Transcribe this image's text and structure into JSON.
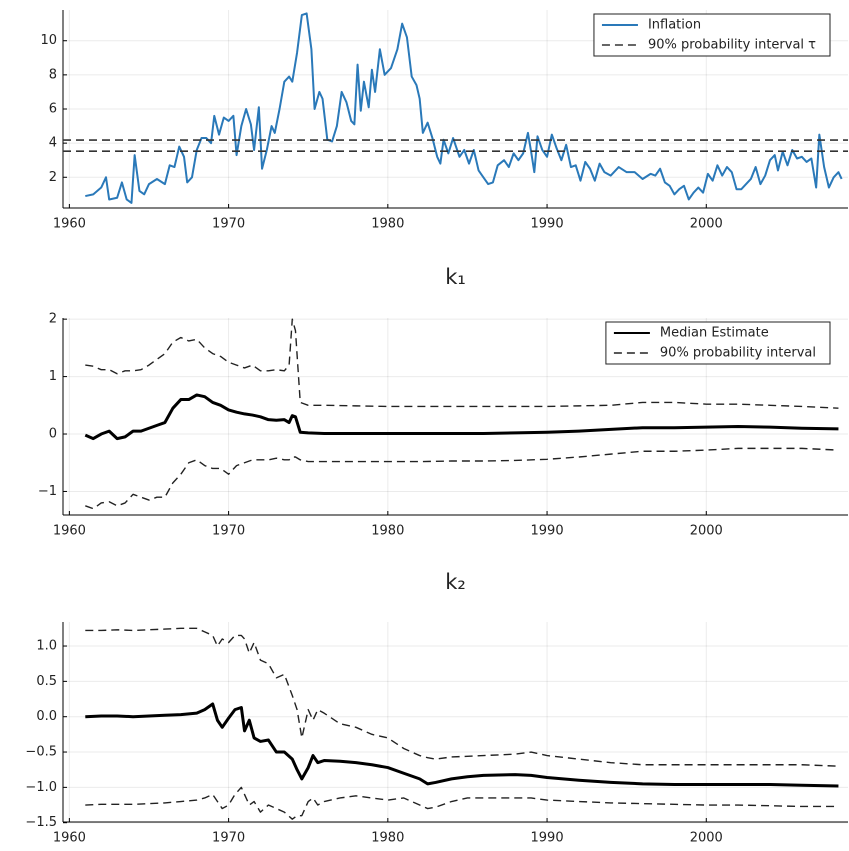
{
  "chart_data": [
    {
      "type": "line",
      "grid": true,
      "legend": "top-right",
      "xlim": [
        1959.6,
        2008.9
      ],
      "xticks": [
        1960,
        1970,
        1980,
        1990,
        2000
      ],
      "ylim": [
        0.2,
        11.8
      ],
      "yticks": [
        2,
        4,
        6,
        8,
        10
      ],
      "x": [
        1961.0,
        1961.5,
        1962.0,
        1962.3,
        1962.5,
        1963.0,
        1963.3,
        1963.6,
        1963.9,
        1964.1,
        1964.4,
        1964.7,
        1965.0,
        1965.5,
        1966.0,
        1966.3,
        1966.6,
        1966.9,
        1967.2,
        1967.4,
        1967.7,
        1968.0,
        1968.3,
        1968.6,
        1968.9,
        1969.1,
        1969.4,
        1969.7,
        1970.0,
        1970.3,
        1970.5,
        1970.8,
        1971.1,
        1971.4,
        1971.6,
        1971.9,
        1972.1,
        1972.4,
        1972.7,
        1972.9,
        1973.2,
        1973.5,
        1973.8,
        1974.0,
        1974.3,
        1974.6,
        1974.9,
        1975.2,
        1975.4,
        1975.7,
        1975.9,
        1976.2,
        1976.5,
        1976.8,
        1977.1,
        1977.4,
        1977.7,
        1977.9,
        1978.1,
        1978.3,
        1978.5,
        1978.8,
        1979.0,
        1979.2,
        1979.5,
        1979.8,
        1980.2,
        1980.6,
        1980.9,
        1981.2,
        1981.5,
        1981.8,
        1982.0,
        1982.2,
        1982.5,
        1982.8,
        1983.1,
        1983.3,
        1983.5,
        1983.8,
        1984.1,
        1984.5,
        1984.8,
        1985.1,
        1985.4,
        1985.7,
        1986.0,
        1986.3,
        1986.6,
        1986.9,
        1987.3,
        1987.6,
        1987.9,
        1988.2,
        1988.5,
        1988.8,
        1989.0,
        1989.2,
        1989.4,
        1989.7,
        1990.0,
        1990.3,
        1990.6,
        1990.9,
        1991.2,
        1991.5,
        1991.8,
        1992.1,
        1992.4,
        1992.7,
        1993.0,
        1993.3,
        1993.6,
        1994.0,
        1994.5,
        1995.0,
        1995.5,
        1996.0,
        1996.5,
        1996.8,
        1997.1,
        1997.4,
        1997.7,
        1998.0,
        1998.3,
        1998.6,
        1998.9,
        1999.2,
        1999.5,
        1999.8,
        2000.1,
        2000.4,
        2000.7,
        2001.0,
        2001.3,
        2001.6,
        2001.9,
        2002.2,
        2002.5,
        2002.8,
        2003.1,
        2003.4,
        2003.7,
        2004.0,
        2004.3,
        2004.5,
        2004.8,
        2005.1,
        2005.4,
        2005.7,
        2006.0,
        2006.3,
        2006.6,
        2006.9,
        2007.1,
        2007.4,
        2007.7,
        2008.0,
        2008.3,
        2008.5
      ],
      "series": [
        {
          "name": "Inflation",
          "color": "#2a79b9",
          "width": 2,
          "values": [
            0.9,
            1.0,
            1.4,
            2.0,
            0.7,
            0.8,
            1.7,
            0.7,
            0.5,
            3.3,
            1.2,
            1.0,
            1.6,
            1.9,
            1.6,
            2.7,
            2.6,
            3.8,
            3.2,
            1.7,
            2.0,
            3.6,
            4.3,
            4.3,
            4.0,
            5.6,
            4.5,
            5.5,
            5.3,
            5.6,
            3.3,
            5.0,
            6.0,
            5.1,
            3.6,
            6.1,
            2.5,
            3.6,
            5.0,
            4.6,
            6.0,
            7.6,
            7.9,
            7.6,
            9.3,
            11.5,
            11.6,
            9.5,
            6.0,
            7.0,
            6.6,
            4.2,
            4.1,
            5.0,
            7.0,
            6.4,
            5.3,
            5.1,
            8.6,
            5.9,
            7.6,
            6.1,
            8.3,
            7.0,
            9.5,
            8.0,
            8.4,
            9.5,
            11.0,
            10.2,
            7.9,
            7.4,
            6.6,
            4.6,
            5.2,
            4.3,
            3.2,
            2.8,
            4.2,
            3.4,
            4.3,
            3.2,
            3.6,
            2.8,
            3.6,
            2.4,
            2.0,
            1.6,
            1.7,
            2.7,
            3.0,
            2.6,
            3.4,
            3.0,
            3.4,
            4.6,
            3.5,
            2.3,
            4.4,
            3.6,
            3.2,
            4.5,
            3.7,
            3.0,
            3.9,
            2.6,
            2.7,
            1.8,
            2.9,
            2.5,
            1.8,
            2.8,
            2.3,
            2.1,
            2.6,
            2.3,
            2.3,
            1.9,
            2.2,
            2.1,
            2.5,
            1.7,
            1.5,
            1.0,
            1.3,
            1.5,
            0.7,
            1.1,
            1.4,
            1.1,
            2.2,
            1.8,
            2.7,
            2.1,
            2.6,
            2.3,
            1.3,
            1.3,
            1.6,
            1.9,
            2.6,
            1.6,
            2.1,
            3.0,
            3.3,
            2.4,
            3.5,
            2.7,
            3.6,
            3.1,
            3.2,
            2.9,
            3.1,
            1.4,
            4.5,
            2.6,
            1.4,
            2.0,
            2.3,
            1.9
          ]
        }
      ],
      "hlines": {
        "name": "90% probability interval τ",
        "color": "#333333",
        "values": [
          4.18,
          3.53
        ]
      }
    },
    {
      "type": "line",
      "title": "k₁",
      "grid": true,
      "legend": "top-right",
      "xlim": [
        1959.6,
        2008.9
      ],
      "xticks": [
        1960,
        1970,
        1980,
        1990,
        2000
      ],
      "ylim": [
        -1.41,
        2.02
      ],
      "yticks": [
        {
          "value": -1,
          "label": "−1"
        },
        0,
        1,
        2
      ],
      "x": [
        1961,
        1961.5,
        1962,
        1962.5,
        1963,
        1963.5,
        1964,
        1964.5,
        1965,
        1965.5,
        1966,
        1966.5,
        1967,
        1967.5,
        1968,
        1968.5,
        1969,
        1969.5,
        1970,
        1970.5,
        1971,
        1971.5,
        1972,
        1972.5,
        1973,
        1973.5,
        1973.8,
        1974.0,
        1974.2,
        1974.5,
        1975,
        1976,
        1978,
        1980,
        1982,
        1984,
        1986,
        1988,
        1990,
        1992,
        1994,
        1996,
        1998,
        2000,
        2002,
        2004,
        2006,
        2008.3
      ],
      "series": [
        {
          "name": "Median Estimate",
          "color": "#000000",
          "width": 3,
          "values": [
            -0.02,
            -0.08,
            0.0,
            0.05,
            -0.08,
            -0.05,
            0.05,
            0.05,
            0.1,
            0.15,
            0.2,
            0.45,
            0.6,
            0.6,
            0.68,
            0.65,
            0.55,
            0.5,
            0.42,
            0.38,
            0.35,
            0.33,
            0.3,
            0.25,
            0.24,
            0.25,
            0.2,
            0.32,
            0.3,
            0.03,
            0.02,
            0.01,
            0.01,
            0.01,
            0.01,
            0.01,
            0.01,
            0.02,
            0.03,
            0.05,
            0.08,
            0.11,
            0.11,
            0.12,
            0.13,
            0.12,
            0.1,
            0.09
          ]
        },
        {
          "name": "90% probability interval",
          "color": "#222222",
          "width": 1.4,
          "dashed": true,
          "upper": [
            1.2,
            1.18,
            1.12,
            1.12,
            1.05,
            1.1,
            1.1,
            1.12,
            1.2,
            1.3,
            1.4,
            1.6,
            1.68,
            1.62,
            1.65,
            1.5,
            1.4,
            1.35,
            1.25,
            1.2,
            1.15,
            1.2,
            1.1,
            1.1,
            1.12,
            1.1,
            1.2,
            2.0,
            1.8,
            0.55,
            0.5,
            0.5,
            0.49,
            0.48,
            0.48,
            0.48,
            0.48,
            0.48,
            0.48,
            0.49,
            0.5,
            0.55,
            0.55,
            0.52,
            0.52,
            0.5,
            0.48,
            0.45
          ],
          "lower": [
            -1.25,
            -1.3,
            -1.2,
            -1.18,
            -1.25,
            -1.2,
            -1.05,
            -1.1,
            -1.15,
            -1.1,
            -1.1,
            -0.85,
            -0.7,
            -0.5,
            -0.45,
            -0.55,
            -0.6,
            -0.6,
            -0.7,
            -0.55,
            -0.5,
            -0.45,
            -0.45,
            -0.45,
            -0.42,
            -0.45,
            -0.45,
            -0.4,
            -0.4,
            -0.45,
            -0.48,
            -0.48,
            -0.48,
            -0.48,
            -0.48,
            -0.47,
            -0.47,
            -0.46,
            -0.44,
            -0.4,
            -0.35,
            -0.3,
            -0.3,
            -0.28,
            -0.25,
            -0.25,
            -0.25,
            -0.28
          ]
        }
      ]
    },
    {
      "type": "line",
      "title": "k₂",
      "grid": true,
      "xlim": [
        1959.6,
        2008.9
      ],
      "xticks": [
        1960,
        1970,
        1980,
        1990,
        2000
      ],
      "ylim": [
        -1.49,
        1.34
      ],
      "yticks": [
        {
          "value": -1.5,
          "label": "−1.5"
        },
        {
          "value": -1.0,
          "label": "−1.0"
        },
        {
          "value": -0.5,
          "label": "−0.5"
        },
        {
          "value": 0,
          "label": "0.0"
        },
        0.5,
        {
          "value": 1,
          "label": "1.0"
        }
      ],
      "x": [
        1961,
        1962,
        1963,
        1964,
        1965,
        1966,
        1967,
        1968,
        1968.5,
        1969,
        1969.3,
        1969.6,
        1970,
        1970.4,
        1970.8,
        1971,
        1971.3,
        1971.6,
        1972,
        1972.5,
        1973,
        1973.5,
        1974,
        1974.3,
        1974.6,
        1975,
        1975.3,
        1975.6,
        1976,
        1977,
        1978,
        1979,
        1980,
        1981,
        1982,
        1982.5,
        1983,
        1984,
        1985,
        1986,
        1988,
        1989,
        1990,
        1992,
        1994,
        1996,
        1998,
        2000,
        2002,
        2004,
        2006,
        2008.3
      ],
      "series": [
        {
          "name": "Median Estimate",
          "color": "#000000",
          "width": 3,
          "values": [
            0,
            0.01,
            0.01,
            0.0,
            0.01,
            0.02,
            0.03,
            0.05,
            0.1,
            0.18,
            -0.05,
            -0.15,
            -0.02,
            0.1,
            0.13,
            -0.2,
            -0.05,
            -0.3,
            -0.35,
            -0.33,
            -0.5,
            -0.5,
            -0.6,
            -0.75,
            -0.88,
            -0.72,
            -0.55,
            -0.65,
            -0.62,
            -0.63,
            -0.65,
            -0.68,
            -0.72,
            -0.8,
            -0.88,
            -0.95,
            -0.93,
            -0.88,
            -0.85,
            -0.83,
            -0.82,
            -0.83,
            -0.86,
            -0.9,
            -0.93,
            -0.95,
            -0.96,
            -0.96,
            -0.96,
            -0.96,
            -0.97,
            -0.98
          ]
        },
        {
          "name": "90% probability interval",
          "color": "#222222",
          "width": 1.4,
          "dashed": true,
          "upper": [
            1.22,
            1.22,
            1.23,
            1.22,
            1.23,
            1.24,
            1.25,
            1.25,
            1.2,
            1.15,
            1.0,
            1.1,
            1.05,
            1.15,
            1.15,
            1.1,
            0.9,
            1.05,
            0.8,
            0.75,
            0.55,
            0.6,
            0.3,
            0.1,
            -0.3,
            0.1,
            -0.05,
            0.1,
            0.05,
            -0.1,
            -0.15,
            -0.25,
            -0.3,
            -0.45,
            -0.55,
            -0.58,
            -0.6,
            -0.57,
            -0.56,
            -0.55,
            -0.53,
            -0.5,
            -0.55,
            -0.6,
            -0.65,
            -0.68,
            -0.68,
            -0.68,
            -0.68,
            -0.68,
            -0.68,
            -0.7
          ],
          "lower": [
            -1.25,
            -1.24,
            -1.24,
            -1.24,
            -1.23,
            -1.22,
            -1.2,
            -1.18,
            -1.15,
            -1.1,
            -1.2,
            -1.3,
            -1.25,
            -1.1,
            -1.0,
            -1.1,
            -1.25,
            -1.2,
            -1.35,
            -1.25,
            -1.3,
            -1.35,
            -1.45,
            -1.4,
            -1.4,
            -1.2,
            -1.15,
            -1.25,
            -1.2,
            -1.15,
            -1.12,
            -1.15,
            -1.18,
            -1.15,
            -1.25,
            -1.3,
            -1.28,
            -1.2,
            -1.15,
            -1.15,
            -1.15,
            -1.15,
            -1.18,
            -1.2,
            -1.22,
            -1.23,
            -1.24,
            -1.25,
            -1.25,
            -1.26,
            -1.27,
            -1.27
          ]
        }
      ]
    }
  ]
}
